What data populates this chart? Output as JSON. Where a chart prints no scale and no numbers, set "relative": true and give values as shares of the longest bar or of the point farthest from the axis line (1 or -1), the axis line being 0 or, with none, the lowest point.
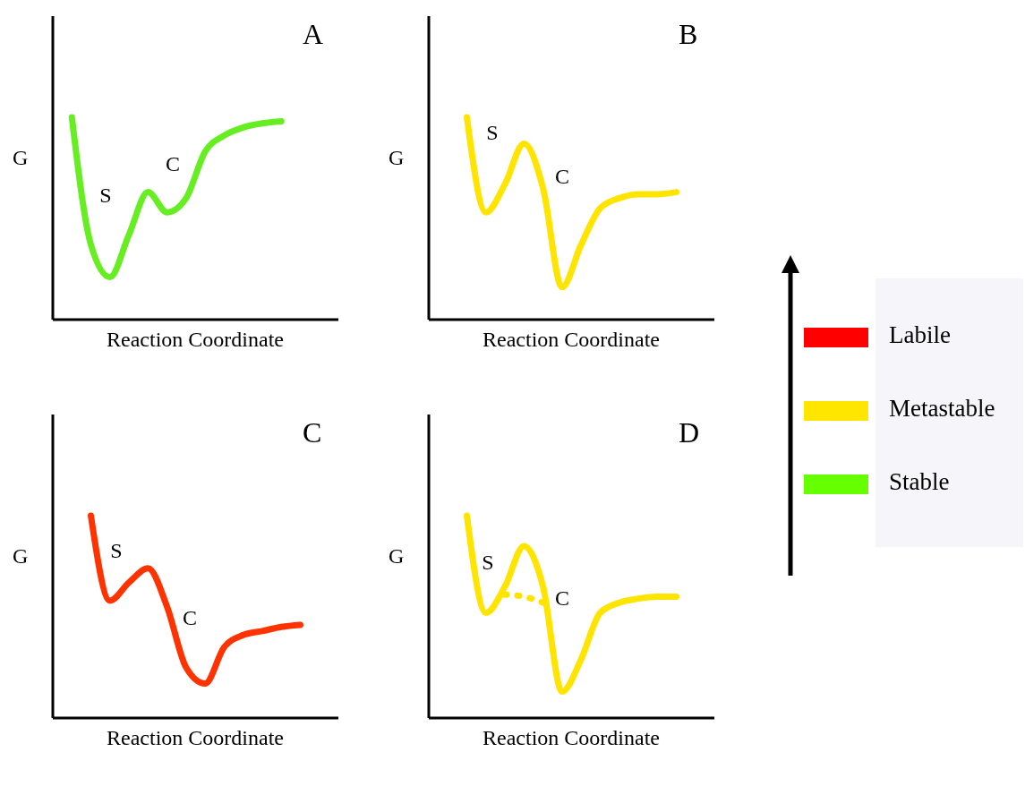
{
  "chart_data": [
    {
      "type": "line",
      "title": "A",
      "xlabel": "Reaction Coordinate",
      "ylabel": "G",
      "relative": true,
      "annotations": [
        "S",
        "C"
      ],
      "categories": [
        null,
        null,
        null,
        null,
        null,
        null,
        null,
        null,
        null,
        null,
        null,
        null,
        null,
        null,
        null,
        null
      ],
      "series": [
        {
          "color": "#66ee22",
          "values": [
            null,
            1,
            0.37,
            0.21,
            0.42,
            0.63,
            0.53,
            0.6,
            0.83,
            0.91,
            0.95,
            0.97,
            0.98,
            null,
            null,
            null
          ]
        }
      ]
    },
    {
      "type": "line",
      "title": "B",
      "xlabel": "Reaction Coordinate",
      "ylabel": "G",
      "relative": true,
      "annotations": [
        "S",
        "C"
      ],
      "categories": [
        null,
        null,
        null,
        null,
        null,
        null,
        null,
        null,
        null,
        null,
        null,
        null,
        null,
        null,
        null,
        null
      ],
      "series": [
        {
          "color": "#ffe400",
          "values": [
            null,
            null,
            1,
            0.53,
            0.67,
            0.87,
            0.65,
            0.16,
            0.37,
            0.55,
            0.6,
            0.62,
            0.62,
            0.63,
            null,
            null
          ]
        }
      ]
    },
    {
      "type": "line",
      "title": "C",
      "xlabel": "Reaction Coordinate",
      "ylabel": "G",
      "relative": true,
      "annotations": [
        "S",
        "C"
      ],
      "categories": [
        null,
        null,
        null,
        null,
        null,
        null,
        null,
        null,
        null,
        null,
        null,
        null,
        null,
        null,
        null,
        null
      ],
      "series": [
        {
          "color": "#ff3300",
          "values": [
            null,
            null,
            1,
            0.58,
            0.67,
            0.74,
            0.55,
            0.25,
            0.17,
            0.35,
            0.41,
            0.43,
            0.45,
            0.46,
            null,
            null
          ]
        }
      ]
    },
    {
      "type": "line",
      "title": "D",
      "xlabel": "Reaction Coordinate",
      "ylabel": "G",
      "relative": true,
      "annotations": [
        "S",
        "C"
      ],
      "categories": [
        null,
        null,
        null,
        null,
        null,
        null,
        null,
        null,
        null,
        null,
        null,
        null,
        null,
        null,
        null,
        null
      ],
      "series": [
        {
          "color": "#ffe400",
          "values": [
            null,
            null,
            1,
            0.52,
            0.65,
            0.85,
            0.65,
            0.13,
            0.29,
            0.52,
            0.57,
            0.59,
            0.6,
            0.6,
            null,
            null
          ]
        },
        {
          "color": "#ffe400",
          "line_style": "dotted",
          "values": [
            null,
            null,
            null,
            null,
            0.61,
            0.6,
            0.57,
            null,
            null,
            null,
            null,
            null,
            null,
            null,
            null,
            null
          ]
        }
      ]
    },
    {
      "type": "other",
      "annotations": [
        "Labile",
        "Metastable",
        "Stable"
      ],
      "colors": [
        "#ff0000",
        "#ffe600",
        "#66ff00"
      ]
    }
  ]
}
